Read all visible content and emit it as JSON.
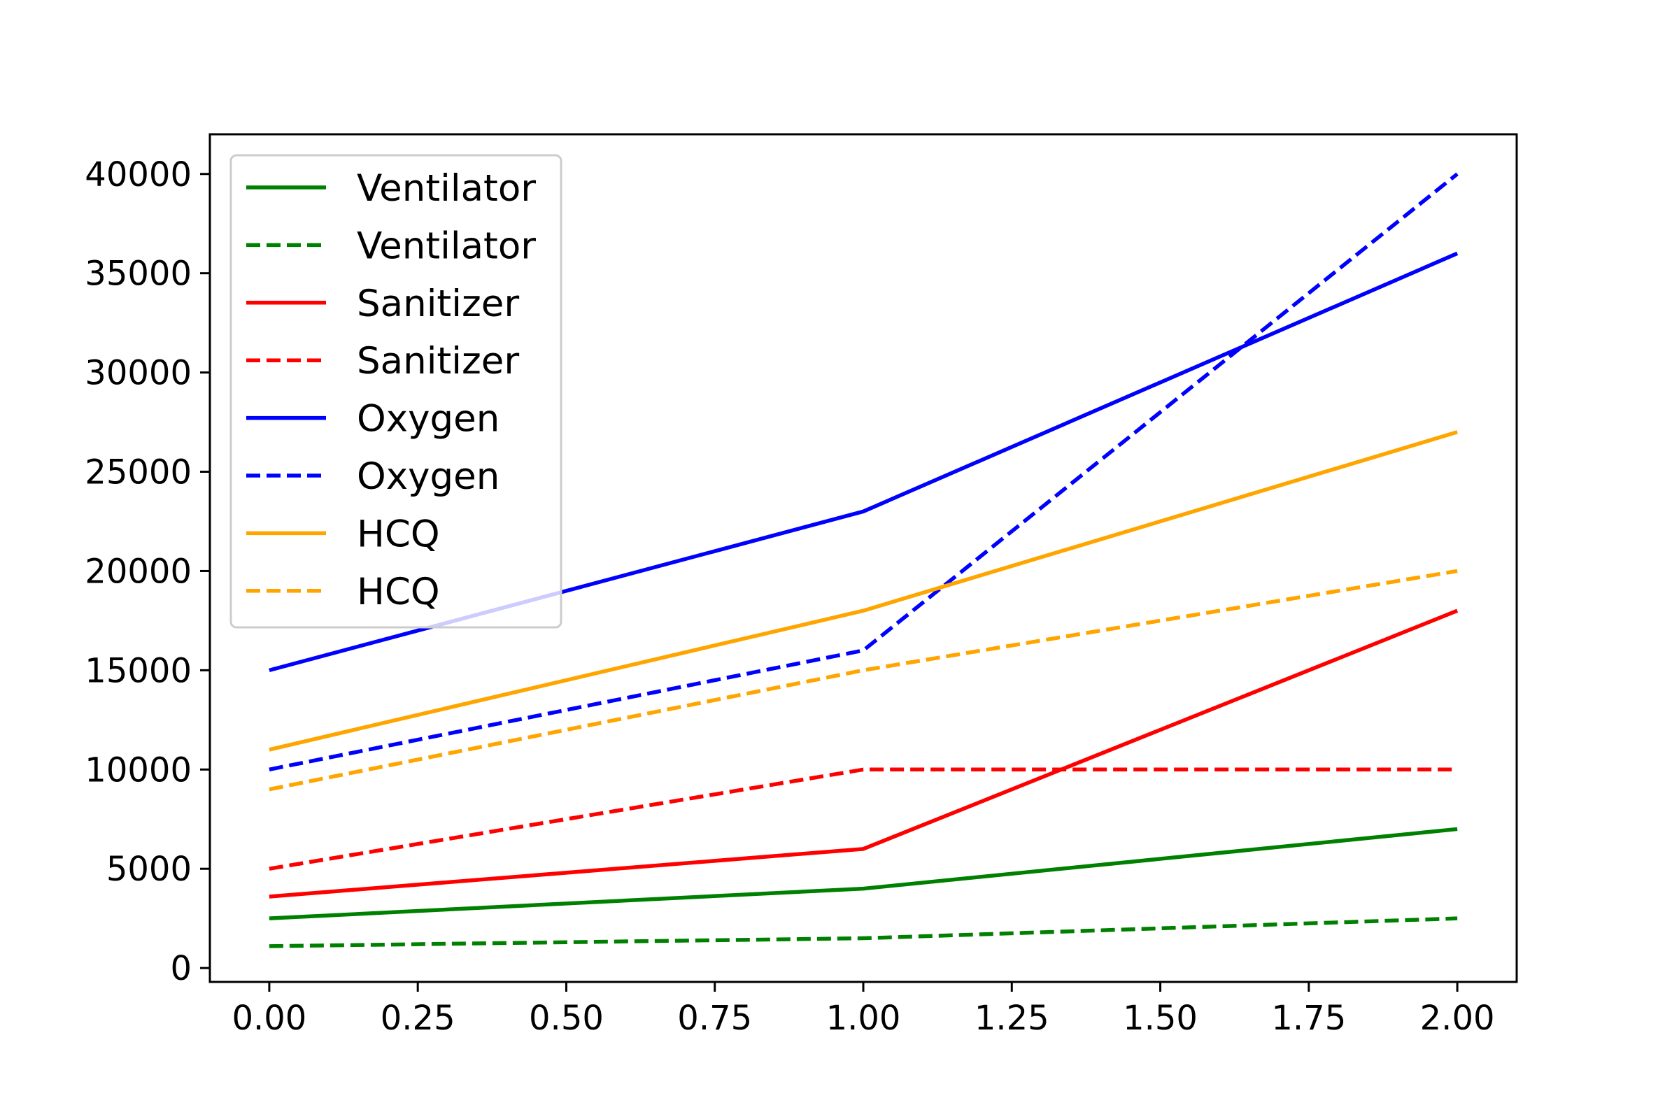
{
  "chart_data": {
    "type": "line",
    "title": "",
    "xlabel": "",
    "ylabel": "",
    "xlim": [
      -0.1,
      2.1
    ],
    "ylim": [
      -700,
      42000
    ],
    "grid": false,
    "legend_position": "top-left",
    "x_ticks": [
      "0.00",
      "0.25",
      "0.50",
      "0.75",
      "1.00",
      "1.25",
      "1.50",
      "1.75",
      "2.00"
    ],
    "y_ticks": [
      "0",
      "5000",
      "10000",
      "15000",
      "20000",
      "25000",
      "30000",
      "35000",
      "40000"
    ],
    "x": [
      0,
      1,
      2
    ],
    "series": [
      {
        "name": "Ventilator",
        "color": "#008000",
        "style": "solid",
        "values": [
          2500,
          4000,
          7000
        ]
      },
      {
        "name": "Ventilator",
        "color": "#008000",
        "style": "dashed",
        "values": [
          1100,
          1500,
          2500
        ]
      },
      {
        "name": "Sanitizer",
        "color": "#ff0000",
        "style": "solid",
        "values": [
          3600,
          6000,
          18000
        ]
      },
      {
        "name": "Sanitizer",
        "color": "#ff0000",
        "style": "dashed",
        "values": [
          5000,
          10000,
          10000
        ]
      },
      {
        "name": "Oxygen",
        "color": "#0000ff",
        "style": "solid",
        "values": [
          15000,
          23000,
          36000
        ]
      },
      {
        "name": "Oxygen",
        "color": "#0000ff",
        "style": "dashed",
        "values": [
          10000,
          16000,
          40000
        ]
      },
      {
        "name": "HCQ",
        "color": "#ffa500",
        "style": "solid",
        "values": [
          11000,
          18000,
          27000
        ]
      },
      {
        "name": "HCQ",
        "color": "#ffa500",
        "style": "dashed",
        "values": [
          9000,
          15000,
          20000
        ]
      }
    ]
  }
}
